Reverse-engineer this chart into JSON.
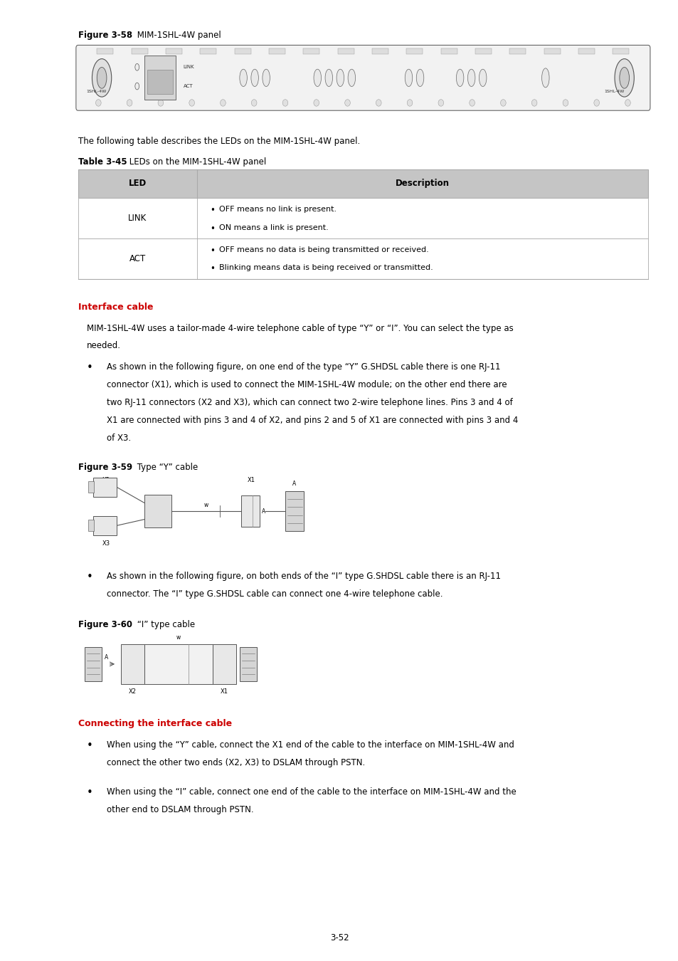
{
  "bg_color": "#ffffff",
  "text_color": "#000000",
  "heading_color": "#cc0000",
  "fig_width": 9.54,
  "fig_height": 13.5,
  "lm": 0.115,
  "rm": 0.955,
  "fs": 8.5,
  "figure_label_bold": "Figure 3-58",
  "figure_label_normal": " MIM-1SHL-4W panel",
  "table_intro": "The following table describes the LEDs on the MIM-1SHL-4W panel.",
  "table_label_bold": "Table 3-45",
  "table_label_normal": " LEDs on the MIM-1SHL-4W panel",
  "section1_title": "Interface cable",
  "fig59_bold": "Figure 3-59",
  "fig59_normal": " Type “Y” cable",
  "fig60_bold": "Figure 3-60",
  "fig60_normal": " “I” type cable",
  "section2_title": "Connecting the interface cable",
  "page_number": "3-52",
  "para1_line1": "MIM-1SHL-4W uses a tailor-made 4-wire telephone cable of type “Y” or “I”. You can select the type as",
  "para1_line2": "needed.",
  "b1_l1": "As shown in the following figure, on one end of the type “Y” G.SHDSL cable there is one RJ-11",
  "b1_l2": "connector (X1), which is used to connect the MIM-1SHL-4W module; on the other end there are",
  "b1_l3": "two RJ-11 connectors (X2 and X3), which can connect two 2-wire telephone lines. Pins 3 and 4 of",
  "b1_l4": "X1 are connected with pins 3 and 4 of X2, and pins 2 and 5 of X1 are connected with pins 3 and 4",
  "b1_l5": "of X3.",
  "b2_l1": "As shown in the following figure, on both ends of the “I” type G.SHDSL cable there is an RJ-11",
  "b2_l2": "connector. The “I” type G.SHDSL cable can connect one 4-wire telephone cable.",
  "b3_l1": "When using the “Y” cable, connect the X1 end of the cable to the interface on MIM-1SHL-4W and",
  "b3_l2": "connect the other two ends (X2, X3) to DSLAM through PSTN.",
  "b4_l1": "When using the “I” cable, connect one end of the cable to the interface on MIM-1SHL-4W and the",
  "b4_l2": "other end to DSLAM through PSTN."
}
